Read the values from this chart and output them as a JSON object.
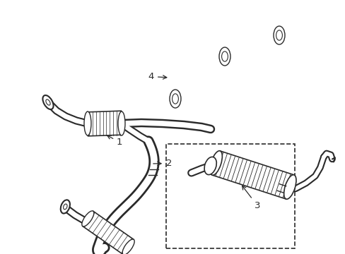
{
  "background_color": "#ffffff",
  "line_color": "#2a2a2a",
  "figsize": [
    4.89,
    3.6
  ],
  "dpi": 100,
  "xlim": [
    0,
    489
  ],
  "ylim": [
    0,
    360
  ]
}
